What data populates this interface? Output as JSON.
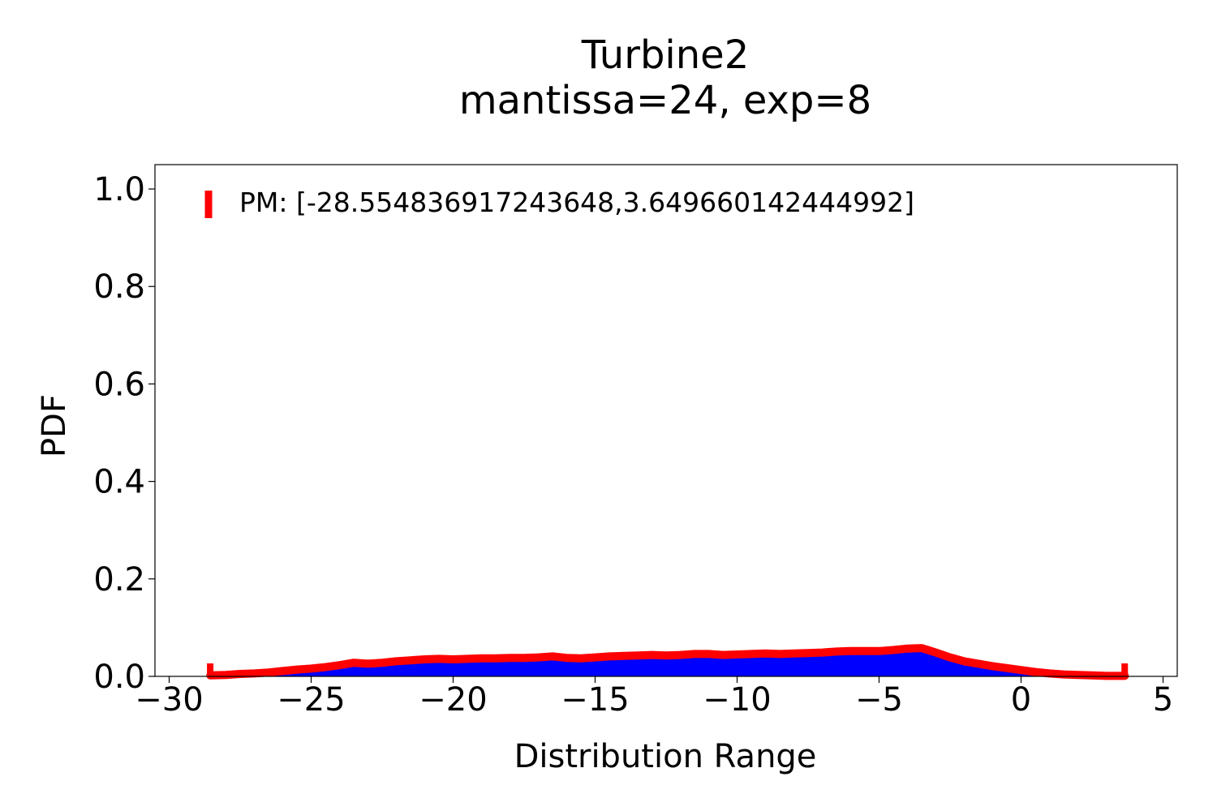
{
  "chart_data": {
    "type": "area",
    "title": "Turbine2",
    "subtitle": "mantissa=24, exp=8",
    "xlabel": "Distribution Range",
    "ylabel": "PDF",
    "xlim": [
      -30.5,
      5.5
    ],
    "ylim": [
      0,
      1.05
    ],
    "xticks": [
      -30,
      -25,
      -20,
      -15,
      -10,
      -5,
      0,
      5
    ],
    "xtick_labels": [
      "−30",
      "−25",
      "−20",
      "−15",
      "−10",
      "−5",
      "0",
      "5"
    ],
    "yticks": [
      0.0,
      0.2,
      0.4,
      0.6,
      0.8,
      1.0
    ],
    "ytick_labels": [
      "0.0",
      "0.2",
      "0.4",
      "0.6",
      "0.8",
      "1.0"
    ],
    "grid": false,
    "legend_position": "top-left",
    "series": [
      {
        "name": "PM: [-28.554836917243648,3.649660142444992]",
        "color": "#ff0000",
        "fill_color": "#0000ff",
        "range": [
          -28.554836917243648,
          3.649660142444992
        ],
        "x": [
          -28.55,
          -28.0,
          -27.5,
          -27.0,
          -26.5,
          -26.0,
          -25.5,
          -25.0,
          -24.5,
          -24.0,
          -23.5,
          -23.0,
          -22.5,
          -22.0,
          -21.5,
          -21.0,
          -20.5,
          -20.0,
          -19.5,
          -19.0,
          -18.5,
          -18.0,
          -17.5,
          -17.0,
          -16.5,
          -16.0,
          -15.5,
          -15.0,
          -14.5,
          -14.0,
          -13.5,
          -13.0,
          -12.5,
          -12.0,
          -11.5,
          -11.0,
          -10.5,
          -10.0,
          -9.5,
          -9.0,
          -8.5,
          -8.0,
          -7.5,
          -7.0,
          -6.5,
          -6.0,
          -5.5,
          -5.0,
          -4.5,
          -4.0,
          -3.5,
          -3.0,
          -2.5,
          -2.0,
          -1.5,
          -1.0,
          -0.5,
          0.0,
          0.5,
          1.0,
          1.5,
          2.0,
          2.5,
          3.0,
          3.65
        ],
        "y": [
          0.002,
          0.003,
          0.005,
          0.006,
          0.008,
          0.011,
          0.014,
          0.016,
          0.019,
          0.023,
          0.028,
          0.026,
          0.028,
          0.031,
          0.033,
          0.035,
          0.036,
          0.035,
          0.036,
          0.037,
          0.037,
          0.038,
          0.038,
          0.039,
          0.041,
          0.038,
          0.037,
          0.039,
          0.041,
          0.042,
          0.043,
          0.044,
          0.043,
          0.044,
          0.046,
          0.046,
          0.044,
          0.045,
          0.046,
          0.047,
          0.046,
          0.047,
          0.048,
          0.049,
          0.051,
          0.052,
          0.052,
          0.052,
          0.054,
          0.057,
          0.058,
          0.049,
          0.039,
          0.031,
          0.026,
          0.021,
          0.017,
          0.013,
          0.009,
          0.006,
          0.004,
          0.003,
          0.002,
          0.001,
          0.001
        ]
      }
    ]
  }
}
